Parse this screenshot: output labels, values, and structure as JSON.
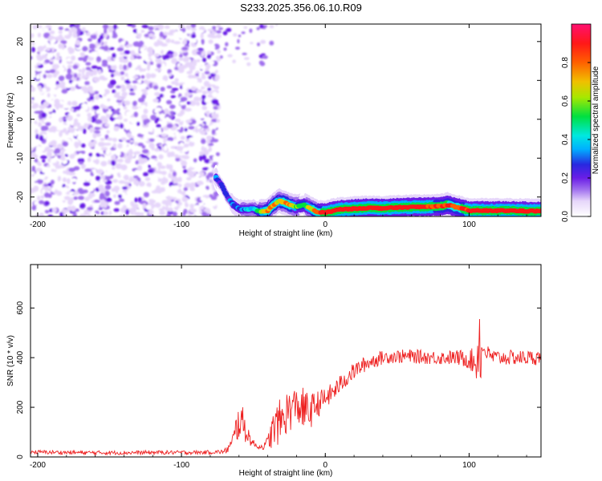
{
  "title": "S233.2025.356.06.10.R09",
  "chart_data": [
    {
      "type": "heatmap",
      "xlabel": "Height of straight line (km)",
      "ylabel": "Frequency (Hz)",
      "xlim": [
        -205,
        150
      ],
      "ylim": [
        -25,
        24.5
      ],
      "x_ticks": [
        -200,
        -100,
        0,
        100
      ],
      "x_tick_labels": [
        "-200",
        "-100",
        "0",
        "100"
      ],
      "y_ticks": [
        -20,
        -10,
        0,
        10,
        20
      ],
      "y_tick_labels": [
        "-20",
        "-10",
        "0",
        "10",
        "20"
      ],
      "colorbar": {
        "label": "Normalized spectral amplitude",
        "range": [
          0,
          1
        ],
        "ticks": [
          0.0,
          0.2,
          0.4,
          0.6,
          0.8
        ],
        "tick_labels": [
          "0.0",
          "0.2",
          "0.4",
          "0.6",
          "0.8"
        ],
        "colors": [
          "#ffffff",
          "#c9a8f0",
          "#7a2ee6",
          "#2a2adc",
          "#00d8ff",
          "#00e050",
          "#c8e600",
          "#ff8800",
          "#ff2020",
          "#ff1060"
        ]
      },
      "noise_region_x": [
        -205,
        -74
      ],
      "noise_level": 0.2,
      "ridge": {
        "x": [
          -76,
          -72,
          -68,
          -64,
          -60,
          -55,
          -50,
          -45,
          -40,
          -36,
          -32,
          -28,
          -25,
          -20,
          -15,
          -10,
          -5,
          0,
          10,
          20,
          30,
          40,
          50,
          60,
          70,
          80,
          85,
          90,
          95,
          100,
          110,
          120,
          130,
          140,
          150
        ],
        "freq": [
          -15,
          -17,
          -20,
          -22,
          -23,
          -23.2,
          -23,
          -23.8,
          -23.5,
          -22,
          -21,
          -21.5,
          -22,
          -22.5,
          -22,
          -23,
          -24,
          -24,
          -23.2,
          -23,
          -22.8,
          -22.9,
          -22.7,
          -22.6,
          -22.5,
          -22.4,
          -22,
          -22.5,
          -23,
          -23.5,
          -23.5,
          -23.5,
          -23.5,
          -23.6,
          -23.6
        ],
        "amplitude": [
          0.35,
          0.3,
          0.3,
          0.35,
          0.35,
          0.4,
          0.4,
          0.6,
          0.85,
          0.8,
          0.7,
          0.75,
          0.8,
          0.6,
          0.55,
          0.7,
          0.85,
          0.95,
          0.95,
          0.95,
          0.95,
          0.95,
          0.95,
          0.95,
          0.95,
          0.9,
          0.9,
          0.85,
          0.9,
          0.95,
          0.95,
          0.95,
          0.95,
          0.95,
          0.95
        ]
      }
    },
    {
      "type": "line",
      "xlabel": "Height of straight line (km)",
      "ylabel": "SNR (10 * v/v)",
      "xlim": [
        -205,
        150
      ],
      "ylim": [
        0,
        775
      ],
      "x_ticks": [
        -200,
        -100,
        0,
        100
      ],
      "x_tick_labels": [
        "-200",
        "-100",
        "0",
        "100"
      ],
      "y_ticks": [
        0,
        200,
        400,
        600
      ],
      "y_tick_labels": [
        "0",
        "200",
        "400",
        "600"
      ],
      "color": "#ee2222",
      "x": [
        -205,
        -180,
        -160,
        -140,
        -120,
        -100,
        -90,
        -80,
        -75,
        -70,
        -65,
        -62,
        -60,
        -58,
        -56,
        -54,
        -52,
        -50,
        -48,
        -45,
        -42,
        -40,
        -38,
        -35,
        -32,
        -30,
        -28,
        -25,
        -22,
        -20,
        -18,
        -15,
        -12,
        -10,
        -8,
        -5,
        -2,
        0,
        5,
        10,
        15,
        20,
        25,
        30,
        35,
        40,
        45,
        50,
        60,
        70,
        80,
        90,
        95,
        100,
        104,
        106,
        107,
        108,
        109,
        110,
        112,
        115,
        120,
        130,
        140,
        150
      ],
      "mean": [
        20,
        18,
        17,
        17,
        18,
        18,
        18,
        19,
        20,
        22,
        50,
        110,
        150,
        140,
        120,
        90,
        70,
        55,
        45,
        40,
        45,
        60,
        90,
        120,
        140,
        150,
        170,
        190,
        200,
        210,
        200,
        190,
        180,
        185,
        200,
        215,
        225,
        235,
        260,
        290,
        320,
        345,
        365,
        380,
        392,
        400,
        405,
        405,
        405,
        402,
        400,
        400,
        398,
        395,
        380,
        400,
        560,
        380,
        420,
        440,
        420,
        405,
        400,
        400,
        400,
        400
      ],
      "jitter": [
        8,
        8,
        8,
        8,
        8,
        8,
        8,
        8,
        8,
        10,
        30,
        60,
        80,
        70,
        60,
        40,
        25,
        15,
        12,
        10,
        15,
        30,
        60,
        80,
        90,
        90,
        90,
        90,
        80,
        70,
        80,
        90,
        80,
        70,
        60,
        55,
        50,
        45,
        40,
        38,
        36,
        34,
        32,
        30,
        30,
        28,
        28,
        28,
        28,
        28,
        28,
        30,
        35,
        40,
        60,
        120,
        200,
        100,
        60,
        40,
        35,
        32,
        30,
        30,
        30,
        30
      ]
    }
  ]
}
